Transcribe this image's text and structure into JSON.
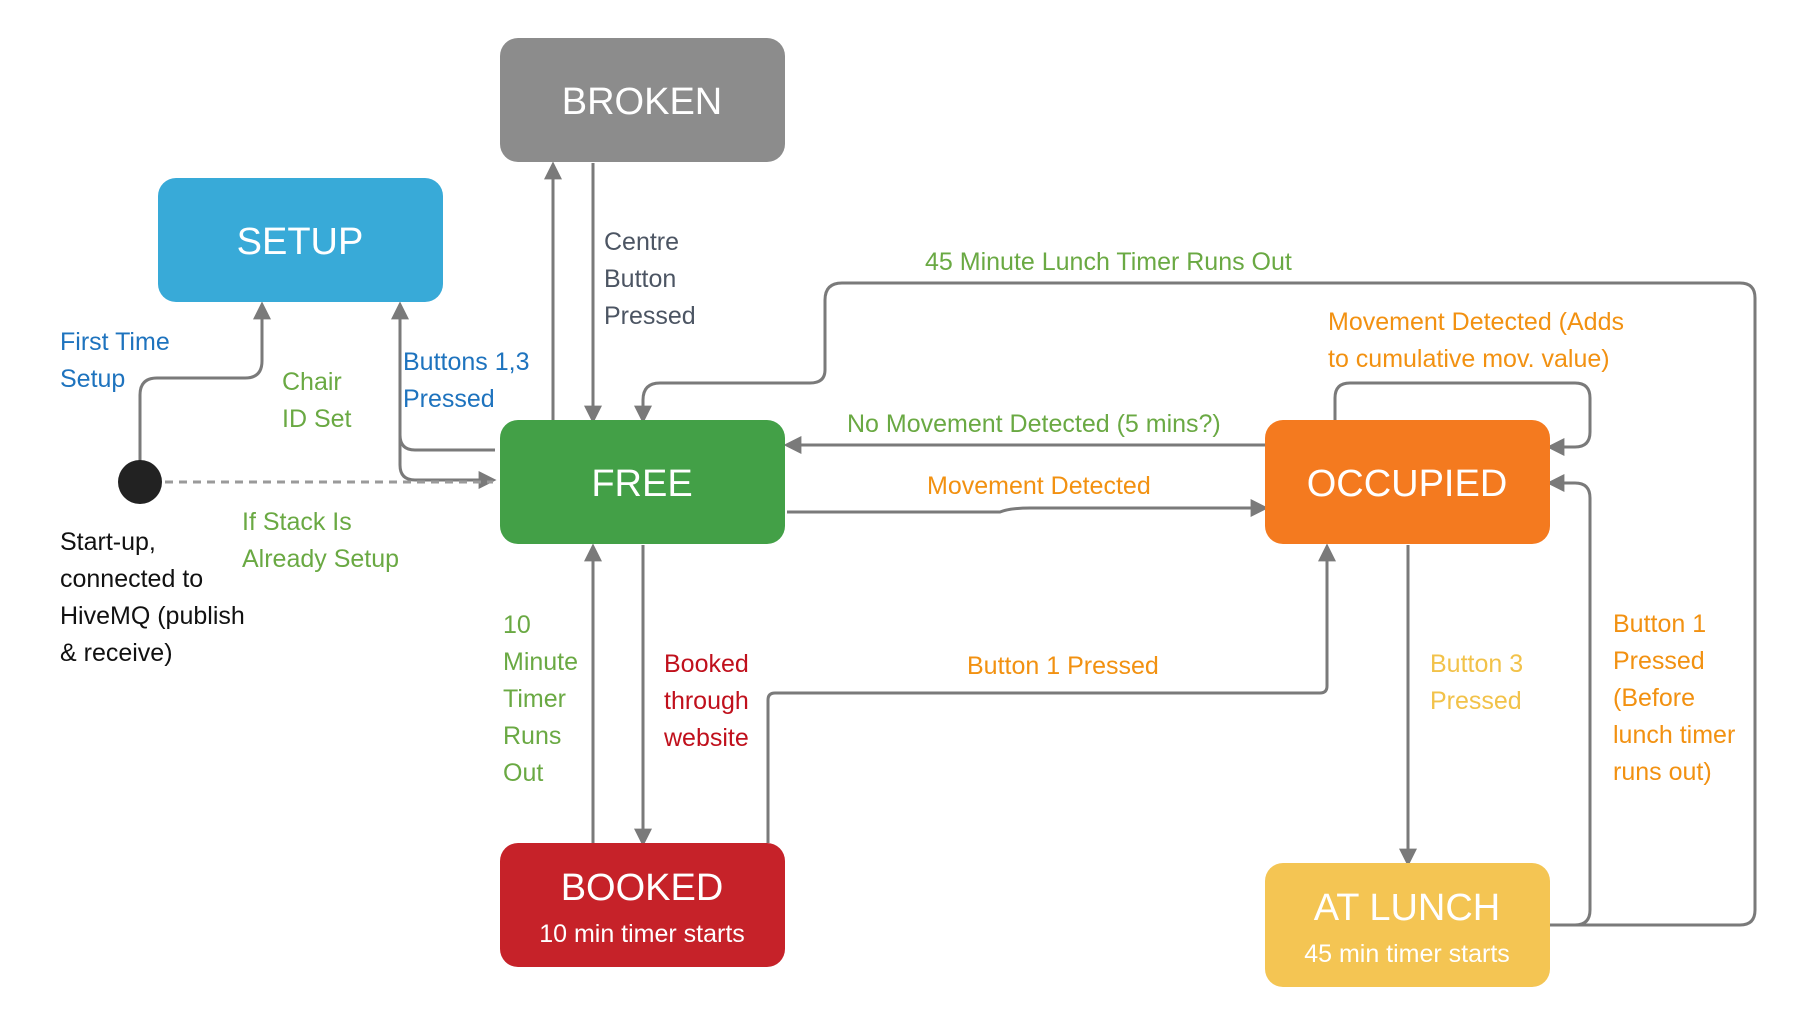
{
  "colors": {
    "setup": "#38aad8",
    "broken": "#8c8c8c",
    "free": "#43a047",
    "occupied": "#f47a1f",
    "booked": "#c62229",
    "at_lunch": "#f4c553",
    "arrow": "#7a7a7a",
    "start_dot": "#222222",
    "label_blue": "#1e73be",
    "label_green": "#6aa943",
    "label_slate": "#4c5563",
    "label_orange": "#f29111",
    "label_red": "#c0101c",
    "label_yellow": "#f2c249",
    "label_black": "#111111"
  },
  "states": {
    "broken": {
      "title": "BROKEN"
    },
    "setup": {
      "title": "SETUP"
    },
    "free": {
      "title": "FREE"
    },
    "occupied": {
      "title": "OCCUPIED"
    },
    "booked": {
      "title": "BOOKED",
      "subtitle": "10 min timer starts"
    },
    "at_lunch": {
      "title": "AT LUNCH",
      "subtitle": "45 min timer starts"
    }
  },
  "start_node": {
    "lines": [
      "Start-up,",
      "connected to",
      "HiveMQ (publish",
      "& receive)"
    ]
  },
  "transitions": {
    "first_time_setup": {
      "lines": [
        "First Time",
        "Setup"
      ]
    },
    "chair_id_set": {
      "lines": [
        "Chair",
        "ID Set"
      ]
    },
    "buttons_1_3": {
      "lines": [
        "Buttons 1,3",
        "Pressed"
      ]
    },
    "centre_button": {
      "lines": [
        "Centre",
        "Button",
        "Pressed"
      ]
    },
    "stack_setup": {
      "lines": [
        "If Stack Is",
        "Already Setup"
      ]
    },
    "lunch_timer_out": {
      "lines": [
        "45 Minute Lunch Timer Runs Out"
      ]
    },
    "movement_cumulative": {
      "lines": [
        "Movement Detected (Adds",
        "to cumulative mov. value)"
      ]
    },
    "no_movement": {
      "lines": [
        "No Movement Detected (5 mins?)"
      ]
    },
    "movement_detected": {
      "lines": [
        "Movement Detected"
      ]
    },
    "ten_minute_timer": {
      "lines": [
        "10",
        "Minute",
        "Timer",
        "Runs",
        "Out"
      ]
    },
    "booked_website": {
      "lines": [
        "Booked",
        "through",
        "website"
      ]
    },
    "button_1_pressed": {
      "lines": [
        "Button 1 Pressed"
      ]
    },
    "button_3_pressed": {
      "lines": [
        "Button 3",
        "Pressed"
      ]
    },
    "button_1_before_lunch": {
      "lines": [
        "Button 1",
        "Pressed",
        "(Before",
        "lunch timer",
        "runs out)"
      ]
    }
  }
}
